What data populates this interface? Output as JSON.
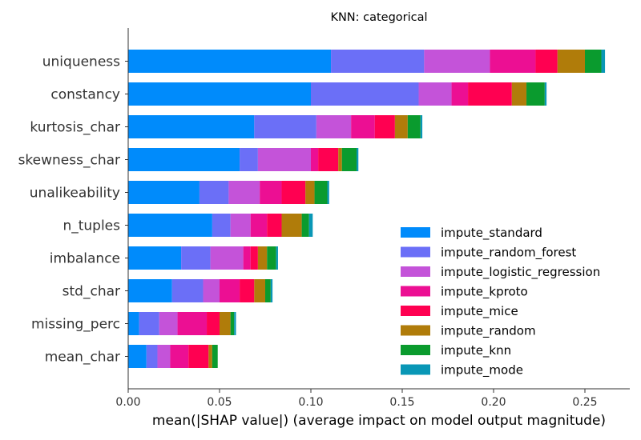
{
  "chart_data": {
    "type": "bar",
    "orientation": "horizontal",
    "stacked": true,
    "title": "KNN: categorical",
    "xlabel": "mean(|SHAP value|) (average impact on model output magnitude)",
    "ylabel": "",
    "xlim": [
      0.0,
      0.275
    ],
    "xticks": [
      "0.00",
      "0.05",
      "0.10",
      "0.15",
      "0.20",
      "0.25"
    ],
    "grid": false,
    "legend_position": "lower-right",
    "categories": [
      "uniqueness",
      "constancy",
      "kurtosis_char",
      "skewness_char",
      "unalikeability",
      "n_tuples",
      "imbalance",
      "std_char",
      "missing_perc",
      "mean_char"
    ],
    "series": [
      {
        "name": "impute_standard",
        "color": "#008bfb",
        "values": [
          0.111,
          0.1,
          0.069,
          0.061,
          0.039,
          0.046,
          0.029,
          0.024,
          0.006,
          0.01
        ]
      },
      {
        "name": "impute_random_forest",
        "color": "#6b6ff7",
        "values": [
          0.051,
          0.059,
          0.034,
          0.01,
          0.016,
          0.01,
          0.016,
          0.017,
          0.011,
          0.006
        ]
      },
      {
        "name": "impute_logistic_regression",
        "color": "#c453d9",
        "values": [
          0.036,
          0.018,
          0.019,
          0.029,
          0.017,
          0.011,
          0.018,
          0.009,
          0.01,
          0.007
        ]
      },
      {
        "name": "impute_kproto",
        "color": "#ec0f93",
        "values": [
          0.025,
          0.009,
          0.013,
          0.004,
          0.012,
          0.009,
          0.004,
          0.011,
          0.016,
          0.01
        ]
      },
      {
        "name": "impute_mice",
        "color": "#ff0051",
        "values": [
          0.012,
          0.024,
          0.011,
          0.011,
          0.013,
          0.008,
          0.004,
          0.008,
          0.007,
          0.011
        ]
      },
      {
        "name": "impute_random",
        "color": "#b07c0a",
        "values": [
          0.015,
          0.008,
          0.007,
          0.002,
          0.005,
          0.011,
          0.005,
          0.006,
          0.006,
          0.002
        ]
      },
      {
        "name": "impute_knn",
        "color": "#0a9b2e",
        "values": [
          0.009,
          0.01,
          0.007,
          0.008,
          0.007,
          0.004,
          0.005,
          0.003,
          0.002,
          0.003
        ]
      },
      {
        "name": "impute_mode",
        "color": "#0997b6",
        "values": [
          0.002,
          0.001,
          0.001,
          0.001,
          0.001,
          0.002,
          0.001,
          0.001,
          0.001,
          0.0
        ]
      }
    ]
  }
}
